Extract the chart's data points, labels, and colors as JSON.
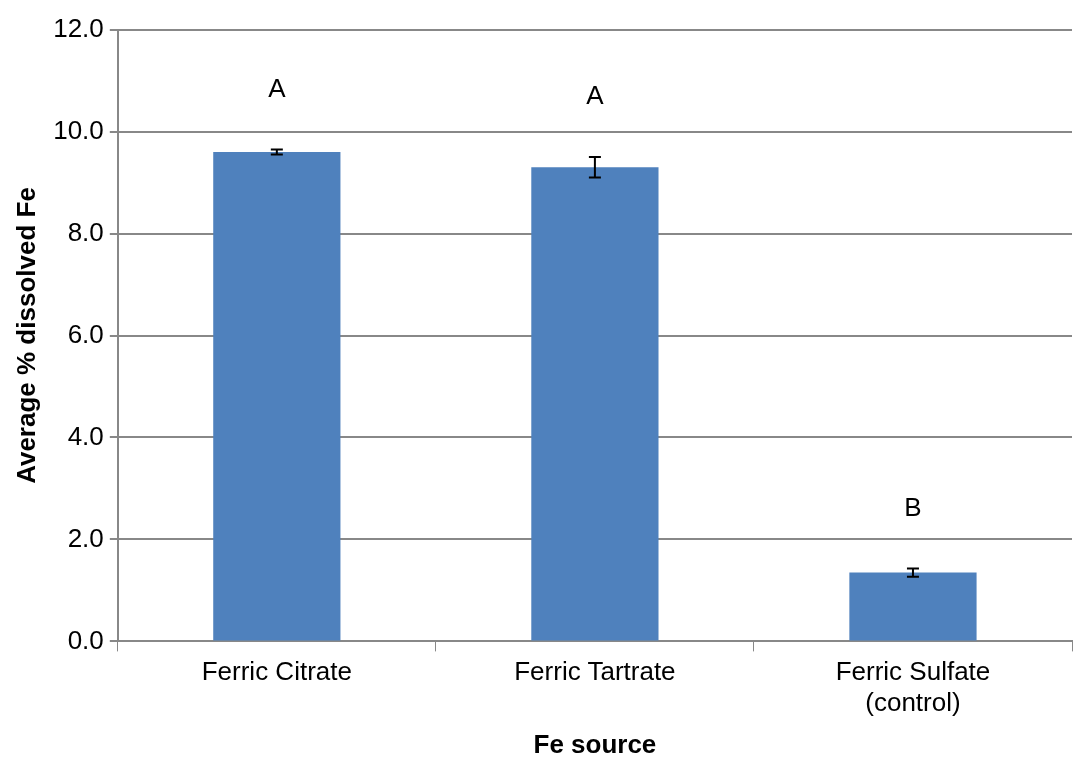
{
  "chart_data": {
    "type": "bar",
    "xlabel": "Fe source",
    "ylabel": "Average % dissolved Fe",
    "categories": [
      "Ferric Citrate",
      "Ferric Tartrate",
      "Ferric Sulfate (control)"
    ],
    "values": [
      9.6,
      9.3,
      1.35
    ],
    "errors": [
      0.05,
      0.2,
      0.08
    ],
    "color": "#4f81bd",
    "ylim": [
      0,
      12
    ],
    "yticks": [
      {
        "value": 0,
        "label": "0.0"
      },
      {
        "value": 2,
        "label": "2.0"
      },
      {
        "value": 4,
        "label": "4.0"
      },
      {
        "value": 6,
        "label": "6.0"
      },
      {
        "value": 8,
        "label": "8.0"
      },
      {
        "value": 10,
        "label": "10.0"
      },
      {
        "value": 12,
        "label": "12.0"
      }
    ],
    "grid": "y",
    "annotations": [
      "A",
      "A",
      "B"
    ]
  }
}
